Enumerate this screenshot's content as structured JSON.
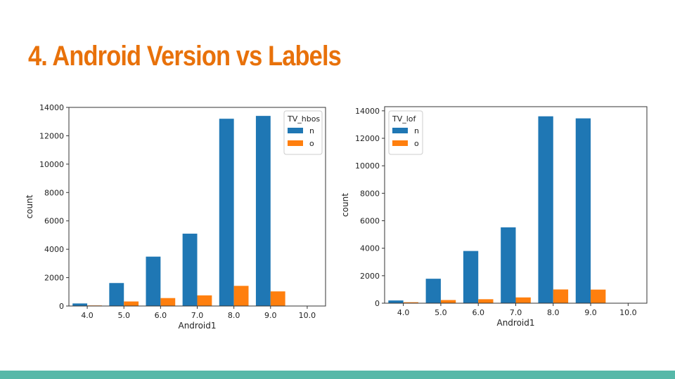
{
  "slide": {
    "title": "4. Android Version vs Labels"
  },
  "colors": {
    "title": "#e8710a",
    "series_n": "#1f77b4",
    "series_o": "#ff7f0e",
    "band": "#56b8a8"
  },
  "chart_data": [
    {
      "type": "bar",
      "title": "",
      "categories": [
        "4.0",
        "5.0",
        "6.0",
        "7.0",
        "8.0",
        "9.0",
        "10.0"
      ],
      "series": [
        {
          "name": "n",
          "values": [
            180,
            1620,
            3480,
            5100,
            13200,
            13400,
            0
          ]
        },
        {
          "name": "o",
          "values": [
            40,
            320,
            560,
            750,
            1420,
            1030,
            0
          ]
        }
      ],
      "xlabel": "Android1",
      "ylabel": "count",
      "ylim": [
        0,
        14000
      ],
      "yticks": [
        "0",
        "2000",
        "4000",
        "6000",
        "8000",
        "10000",
        "12000",
        "14000"
      ],
      "legend": {
        "title": "TV_hbos",
        "position": "top-right"
      },
      "grid": false
    },
    {
      "type": "bar",
      "title": "",
      "categories": [
        "4.0",
        "5.0",
        "6.0",
        "7.0",
        "8.0",
        "9.0",
        "10.0"
      ],
      "series": [
        {
          "name": "n",
          "values": [
            200,
            1780,
            3800,
            5520,
            13600,
            13450,
            0
          ]
        },
        {
          "name": "o",
          "values": [
            70,
            230,
            290,
            420,
            1000,
            990,
            0
          ]
        }
      ],
      "xlabel": "Android1",
      "ylabel": "count",
      "ylim": [
        0,
        14300
      ],
      "yticks": [
        "0",
        "2000",
        "4000",
        "6000",
        "8000",
        "10000",
        "12000",
        "14000"
      ],
      "legend": {
        "title": "TV_lof",
        "position": "top-left"
      },
      "grid": false
    }
  ]
}
